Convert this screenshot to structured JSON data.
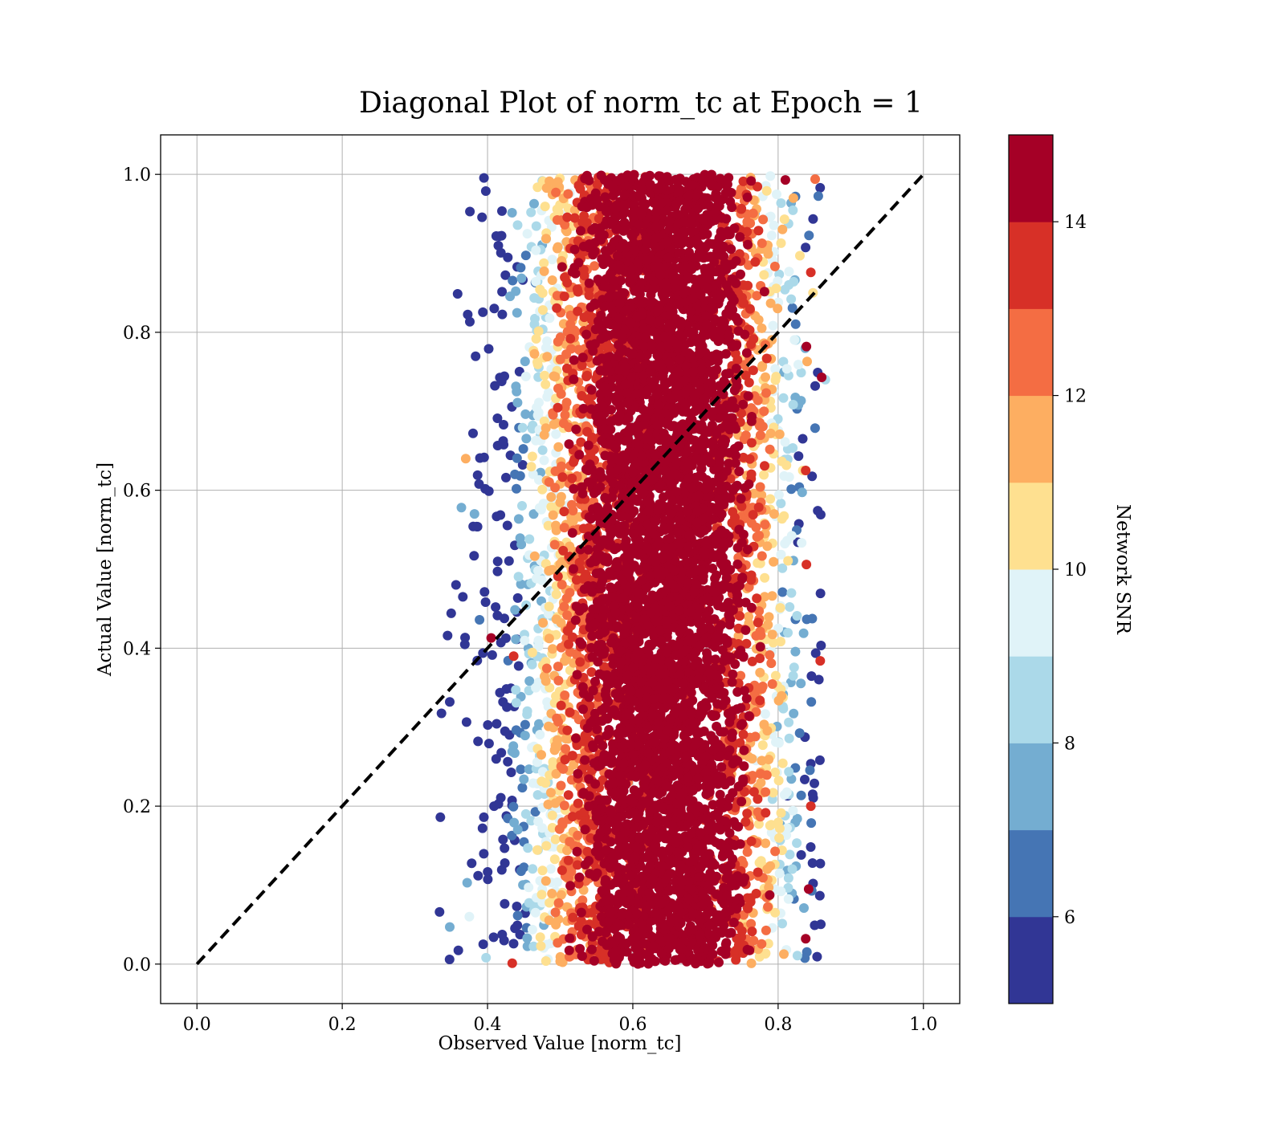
{
  "chart_data": {
    "type": "scatter",
    "title": "Diagonal Plot of norm_tc at Epoch = 1",
    "xlabel": "Observed Value [norm_tc]",
    "ylabel": "Actual Value [norm_tc]",
    "xlim": [
      -0.05,
      1.05
    ],
    "ylim": [
      -0.05,
      1.05
    ],
    "xticks": [
      "0.0",
      "0.2",
      "0.4",
      "0.6",
      "0.8",
      "1.0"
    ],
    "yticks": [
      "0.0",
      "0.2",
      "0.4",
      "0.6",
      "0.8",
      "1.0"
    ],
    "grid": true,
    "reference_line": {
      "style": "dashed",
      "color": "#000000",
      "x": [
        0.0,
        1.0
      ],
      "y": [
        0.0,
        1.0
      ]
    },
    "colorbar": {
      "label": "Network SNR",
      "range": [
        5,
        15
      ],
      "ticks": [
        "6",
        "8",
        "10",
        "12",
        "14"
      ],
      "colors": [
        "#313695",
        "#4575b4",
        "#74add1",
        "#abd9e9",
        "#e0f3f8",
        "#fee090",
        "#fdae61",
        "#f46d43",
        "#d73027",
        "#a50026"
      ],
      "bins": [
        [
          5,
          6
        ],
        [
          6,
          7
        ],
        [
          7,
          8
        ],
        [
          8,
          9
        ],
        [
          9,
          10
        ],
        [
          10,
          11
        ],
        [
          11,
          12
        ],
        [
          12,
          13
        ],
        [
          13,
          14
        ],
        [
          14,
          15
        ]
      ]
    },
    "point_cloud": {
      "description_of_distribution": "dense vertical band",
      "x_center": 0.63,
      "x_core_range": [
        0.56,
        0.72
      ],
      "x_full_range": [
        0.33,
        0.86
      ],
      "y_range": [
        0.0,
        1.0
      ],
      "high_snr_near_center": true
    },
    "outliers": [
      {
        "x": 0.335,
        "y": 0.186,
        "snr": 5.2
      },
      {
        "x": 0.334,
        "y": 0.066,
        "snr": 5.5
      },
      {
        "x": 0.345,
        "y": 0.416,
        "snr": 5.3
      },
      {
        "x": 0.348,
        "y": 0.332,
        "snr": 5.6
      },
      {
        "x": 0.366,
        "y": 0.465,
        "snr": 5.2
      },
      {
        "x": 0.385,
        "y": 0.554,
        "snr": 5.4
      },
      {
        "x": 0.389,
        "y": 0.436,
        "snr": 6.2
      },
      {
        "x": 0.395,
        "y": 0.186,
        "snr": 5.4
      },
      {
        "x": 0.372,
        "y": 0.103,
        "snr": 7.6
      },
      {
        "x": 0.387,
        "y": 0.112,
        "snr": 5.6
      },
      {
        "x": 0.348,
        "y": 0.047,
        "snr": 7.3
      },
      {
        "x": 0.375,
        "y": 0.06,
        "snr": 9.8
      },
      {
        "x": 0.364,
        "y": 0.578,
        "snr": 7.2
      },
      {
        "x": 0.382,
        "y": 0.57,
        "snr": 7.8
      },
      {
        "x": 0.37,
        "y": 0.64,
        "snr": 11.2
      },
      {
        "x": 0.398,
        "y": 0.008,
        "snr": 8.6
      },
      {
        "x": 0.81,
        "y": 0.993,
        "snr": 14.6
      },
      {
        "x": 0.851,
        "y": 0.994,
        "snr": 12.3
      },
      {
        "x": 0.821,
        "y": 0.97,
        "snr": 11.4
      },
      {
        "x": 0.768,
        "y": 0.951,
        "snr": 7.6
      },
      {
        "x": 0.845,
        "y": 0.876,
        "snr": 13.6
      },
      {
        "x": 0.83,
        "y": 0.897,
        "snr": 10.6
      },
      {
        "x": 0.848,
        "y": 0.85,
        "snr": 10.8
      },
      {
        "x": 0.818,
        "y": 0.842,
        "snr": 8.4
      },
      {
        "x": 0.839,
        "y": 0.782,
        "snr": 14.5
      },
      {
        "x": 0.84,
        "y": 0.763,
        "snr": 11.4
      },
      {
        "x": 0.86,
        "y": 0.743,
        "snr": 14.6
      },
      {
        "x": 0.865,
        "y": 0.74,
        "snr": 8.6
      },
      {
        "x": 0.838,
        "y": 0.625,
        "snr": 13.5
      },
      {
        "x": 0.834,
        "y": 0.625,
        "snr": 10.6
      },
      {
        "x": 0.839,
        "y": 0.506,
        "snr": 13.3
      },
      {
        "x": 0.858,
        "y": 0.384,
        "snr": 13.6
      },
      {
        "x": 0.845,
        "y": 0.2,
        "snr": 13.2
      },
      {
        "x": 0.842,
        "y": 0.095,
        "snr": 14.6
      },
      {
        "x": 0.838,
        "y": 0.032,
        "snr": 14.6
      },
      {
        "x": 0.434,
        "y": 0.001,
        "snr": 13.2
      },
      {
        "x": 0.436,
        "y": 0.39,
        "snr": 13.3
      },
      {
        "x": 0.405,
        "y": 0.413,
        "snr": 14.6
      }
    ]
  }
}
